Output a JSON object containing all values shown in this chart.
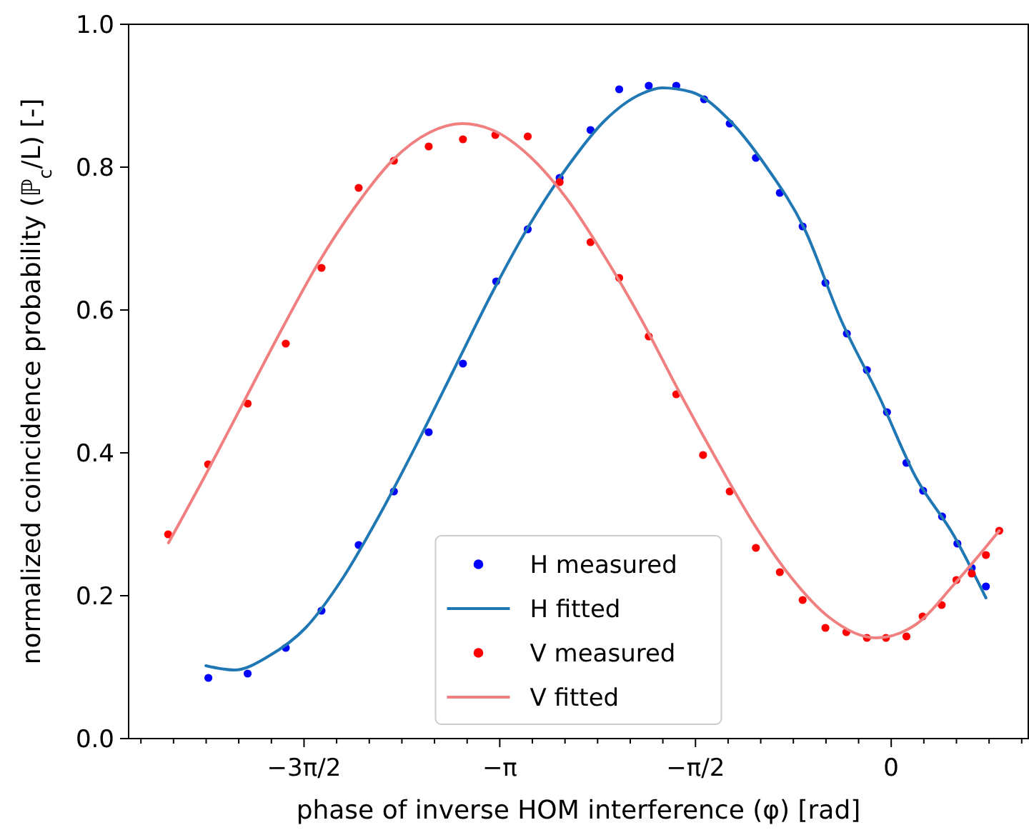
{
  "chart_data": {
    "type": "line",
    "xlabel": "phase of inverse HOM interference (φ) [rad]",
    "ylabel": "normalized coincidence probability (ℙ$_{c}$/L) [-]",
    "xlim": [
      -6.12,
      1.1
    ],
    "ylim": [
      0,
      1
    ],
    "xticks": [
      {
        "value": -6.0214,
        "label": null
      },
      {
        "value": -5.7596,
        "label": null
      },
      {
        "value": -5.4978,
        "label": null
      },
      {
        "value": -5.236,
        "label": null
      },
      {
        "value": -4.9742,
        "label": null
      },
      {
        "value": -4.7124,
        "label": "−3π/2"
      },
      {
        "value": -4.4506,
        "label": null
      },
      {
        "value": -4.1888,
        "label": null
      },
      {
        "value": -3.927,
        "label": null
      },
      {
        "value": -3.6652,
        "label": null
      },
      {
        "value": -3.4034,
        "label": null
      },
      {
        "value": -3.1416,
        "label": "−π"
      },
      {
        "value": -2.8798,
        "label": null
      },
      {
        "value": -2.618,
        "label": null
      },
      {
        "value": -2.3562,
        "label": null
      },
      {
        "value": -2.0944,
        "label": null
      },
      {
        "value": -1.8326,
        "label": null
      },
      {
        "value": -1.5708,
        "label": "−π/2"
      },
      {
        "value": -1.309,
        "label": null
      },
      {
        "value": -1.0472,
        "label": null
      },
      {
        "value": -0.7854,
        "label": null
      },
      {
        "value": -0.5236,
        "label": null
      },
      {
        "value": -0.2618,
        "label": null
      },
      0,
      {
        "value": 0.2618,
        "label": null
      },
      {
        "value": 0.5236,
        "label": null
      },
      {
        "value": 0.7854,
        "label": null
      },
      {
        "value": 1.0472,
        "label": null
      }
    ],
    "yticks": [
      {
        "value": 0,
        "label": "0.0"
      },
      {
        "value": 0.2,
        "label": "0.2"
      },
      {
        "value": 0.4,
        "label": "0.4"
      },
      {
        "value": 0.6,
        "label": "0.6"
      },
      {
        "value": 0.8,
        "label": "0.8"
      },
      {
        "value": 1,
        "label": "1.0"
      }
    ],
    "grid": false,
    "legend": "bottom",
    "series": [
      {
        "name": "H measured",
        "type": "scatter",
        "color": "#0000ff",
        "x": [
          -5.48,
          -5.165,
          -4.859,
          -4.572,
          -4.274,
          -3.991,
          -3.712,
          -3.437,
          -3.17,
          -2.917,
          -2.661,
          -2.413,
          -2.183,
          -1.946,
          -1.725,
          -1.502,
          -1.296,
          -1.086,
          -0.894,
          -0.711,
          -0.528,
          -0.356,
          -0.195,
          -0.034,
          0.122,
          0.256,
          0.408,
          0.531,
          0.646,
          0.76
        ],
        "values": [
          0.085,
          0.091,
          0.127,
          0.179,
          0.271,
          0.346,
          0.429,
          0.525,
          0.64,
          0.713,
          0.785,
          0.852,
          0.909,
          0.914,
          0.914,
          0.895,
          0.861,
          0.813,
          0.764,
          0.717,
          0.638,
          0.567,
          0.516,
          0.457,
          0.386,
          0.347,
          0.311,
          0.273,
          0.239,
          0.213
        ]
      },
      {
        "name": "H fitted",
        "type": "line",
        "color": "#1f77b4",
        "x": [
          -5.5,
          -5.27,
          -5.0,
          -4.7,
          -4.4,
          -4.1,
          -3.8,
          -3.5,
          -3.2,
          -2.9,
          -2.6,
          -2.3,
          -2.0,
          -1.84,
          -1.6,
          -1.3,
          -1.0,
          -0.7,
          -0.4,
          -0.1,
          0.2,
          0.5,
          0.76
        ],
        "values": [
          0.102,
          0.096,
          0.115,
          0.155,
          0.225,
          0.315,
          0.415,
          0.52,
          0.625,
          0.72,
          0.8,
          0.865,
          0.903,
          0.911,
          0.905,
          0.866,
          0.8,
          0.715,
          0.585,
          0.48,
          0.365,
          0.285,
          0.197
        ]
      },
      {
        "name": "V measured",
        "type": "scatter",
        "color": "#ff0000",
        "x": [
          -5.803,
          -5.482,
          -5.165,
          -4.859,
          -4.572,
          -4.274,
          -3.991,
          -3.712,
          -3.437,
          -3.177,
          -2.917,
          -2.661,
          -2.413,
          -2.183,
          -1.946,
          -1.725,
          -1.51,
          -1.296,
          -1.086,
          -0.894,
          -0.711,
          -0.528,
          -0.36,
          -0.195,
          -0.042,
          0.122,
          0.252,
          0.405,
          0.523,
          0.646,
          0.76,
          0.867
        ],
        "values": [
          0.286,
          0.384,
          0.469,
          0.553,
          0.659,
          0.771,
          0.809,
          0.829,
          0.839,
          0.845,
          0.843,
          0.779,
          0.695,
          0.645,
          0.563,
          0.482,
          0.397,
          0.346,
          0.267,
          0.233,
          0.194,
          0.155,
          0.149,
          0.141,
          0.141,
          0.143,
          0.171,
          0.187,
          0.222,
          0.231,
          0.257,
          0.291
        ]
      },
      {
        "name": "V fitted",
        "type": "line",
        "color": "#f08080",
        "x": [
          -5.8,
          -5.5,
          -5.2,
          -4.9,
          -4.6,
          -4.3,
          -4.0,
          -3.7,
          -3.445,
          -3.2,
          -2.9,
          -2.6,
          -2.3,
          -2.0,
          -1.7,
          -1.4,
          -1.1,
          -0.8,
          -0.5,
          -0.12,
          0.2,
          0.5,
          0.867
        ],
        "values": [
          0.274,
          0.37,
          0.47,
          0.57,
          0.665,
          0.745,
          0.81,
          0.849,
          0.861,
          0.852,
          0.815,
          0.755,
          0.675,
          0.585,
          0.485,
          0.39,
          0.3,
          0.225,
          0.17,
          0.141,
          0.16,
          0.215,
          0.291
        ]
      }
    ]
  }
}
